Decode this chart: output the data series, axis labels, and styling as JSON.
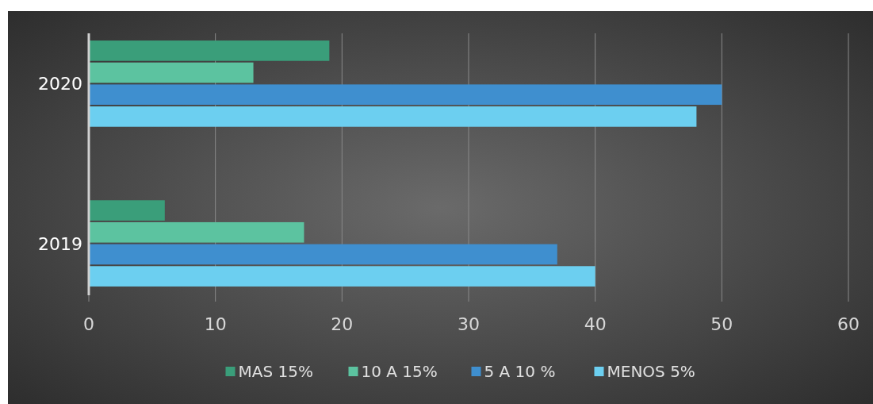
{
  "chart_data": {
    "type": "bar",
    "orientation": "horizontal",
    "categories": [
      "2020",
      "2019"
    ],
    "series": [
      {
        "name": "MAS 15%",
        "color": "#3a9e7a",
        "values": [
          19,
          6
        ]
      },
      {
        "name": "10 A 15%",
        "color": "#5cc3a0",
        "values": [
          13,
          17
        ]
      },
      {
        "name": "5 A 10 %",
        "color": "#3f8fcf",
        "values": [
          50,
          37
        ]
      },
      {
        "name": "MENOS 5%",
        "color": "#6ccff0",
        "values": [
          48,
          40
        ]
      }
    ],
    "xlim": [
      0,
      60
    ],
    "xticks": [
      0,
      10,
      20,
      30,
      40,
      50,
      60
    ],
    "grid": "x",
    "legend": "bottom"
  }
}
